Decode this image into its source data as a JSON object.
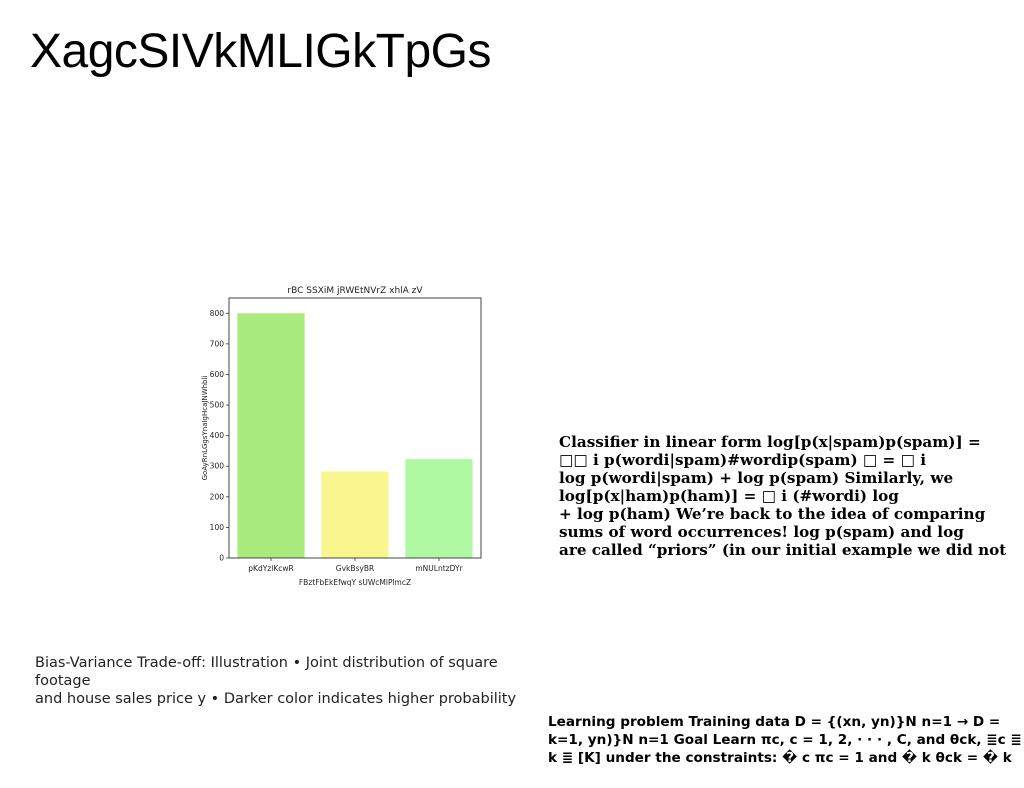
{
  "slide": {
    "title": "XagcSIVkMLIGkTpGs"
  },
  "chart_data": {
    "type": "bar",
    "title": "rBC SSXiM jRWEtNVrZ xhlA zV",
    "xlabel": "FBztFbEkEfwqY sUWcMlPlmcZ",
    "ylabel": "GoAyRnLGgsYnaIgHcaJNWhbli",
    "categories": [
      "pKdYzlKcwR",
      "GvkBsyBR",
      "mNULntzDYr"
    ],
    "values": [
      800,
      283,
      323
    ],
    "ylim": [
      0,
      850
    ],
    "yticks": [
      0,
      100,
      200,
      300,
      400,
      500,
      600,
      700,
      800
    ],
    "colors": [
      "#a9ea7c",
      "#f8f68d",
      "#aef9a1"
    ],
    "grid": false,
    "legend": "none"
  },
  "caption": {
    "lines": [
      "Bias-Variance Trade-off: Illustration • Joint distribution of square footage",
      "and house sales price y • Darker color indicates higher probability"
    ]
  },
  "text_block_right": {
    "lines": [
      "Classifier in linear form log[p(x|spam)p(spam)] =",
      "□□ i p(wordi|spam)#wordip(spam) □ = □ i",
      "log p(wordi|spam) + log p(spam) Similarly, we",
      "log[p(x|ham)p(ham)] = □ i (#wordi) log",
      "+ log p(ham) We’re back to the idea of comparing",
      "sums of word occurrences! log p(spam) and log",
      "are called “priors” (in our initial example we did not"
    ]
  },
  "text_block_bottom": {
    "lines": [
      "Learning problem Training data D = {(xn, yn)}N n=1 → D =",
      "k=1, yn)}N n=1 Goal Learn πc, c = 1, 2, · · · , C, and θck, ≣c ≣",
      "k ≣ [K] under the constraints: � c πc = 1 and � k θck = � k"
    ]
  }
}
